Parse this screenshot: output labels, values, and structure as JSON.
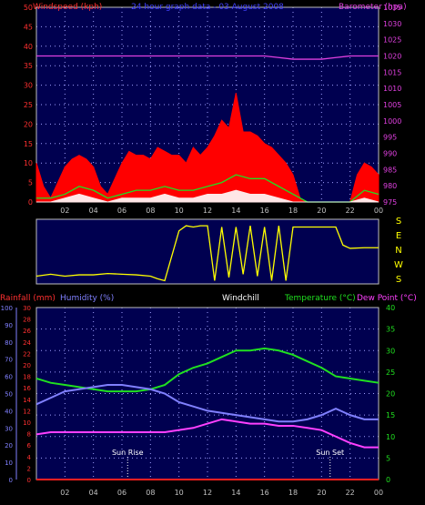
{
  "chart_data": [
    {
      "type": "line",
      "title": "24 hour graph data - 03 August 2008",
      "left_axis_label": "Windspeed (kph)",
      "right_axis_label": "Barometer (hpa)",
      "left_ticks": [
        "0",
        "5",
        "10",
        "15",
        "20",
        "25",
        "30",
        "35",
        "40",
        "45",
        "50"
      ],
      "right_ticks": [
        "975",
        "980",
        "985",
        "990",
        "995",
        "1000",
        "1005",
        "1010",
        "1015",
        "1020",
        "1025",
        "1030",
        "1035"
      ],
      "x_ticks": [
        "02",
        "04",
        "06",
        "08",
        "10",
        "12",
        "14",
        "16",
        "18",
        "20",
        "22",
        "00"
      ],
      "ylim_left": [
        0,
        50
      ],
      "ylim_right": [
        975,
        1035
      ],
      "xlim": [
        0,
        24
      ],
      "grid": true,
      "series": [
        {
          "name": "Barometer",
          "color": "#e040e0",
          "axis": "right",
          "x": [
            0,
            2,
            4,
            6,
            8,
            10,
            12,
            14,
            15,
            16,
            17,
            18,
            19,
            20,
            21,
            22,
            23,
            24
          ],
          "y": [
            1020,
            1020,
            1020,
            1020,
            1020,
            1020,
            1020,
            1020,
            1020,
            1020,
            1019.5,
            1019,
            1019,
            1019,
            1019.5,
            1020,
            1020,
            1020
          ]
        },
        {
          "name": "Gust",
          "color": "#ff0000",
          "axis": "left",
          "x": [
            0,
            0.5,
            1,
            1.5,
            2,
            2.5,
            3,
            3.5,
            4,
            4.5,
            5,
            5.5,
            6,
            6.5,
            7,
            7.5,
            8,
            8.5,
            9,
            9.5,
            10,
            10.5,
            11,
            11.5,
            12,
            12.5,
            13,
            13.5,
            14,
            14.5,
            15,
            15.5,
            16,
            16.5,
            17,
            17.5,
            18,
            18.5,
            19,
            20,
            21,
            22,
            22.5,
            23,
            23.5,
            24
          ],
          "y": [
            10,
            4,
            1,
            5,
            9,
            11,
            12,
            11,
            9,
            4,
            2,
            6,
            10,
            13,
            12,
            12,
            11,
            14,
            13,
            12,
            12,
            10,
            14,
            12,
            14,
            17,
            21,
            19,
            28,
            18,
            18,
            17,
            15,
            14,
            12,
            10,
            7,
            1,
            0,
            0,
            0,
            0,
            7,
            10,
            9,
            7
          ]
        },
        {
          "name": "Average",
          "color": "#20e020",
          "axis": "left",
          "x": [
            0,
            1,
            2,
            3,
            4,
            5,
            6,
            7,
            8,
            9,
            10,
            11,
            12,
            13,
            14,
            15,
            16,
            17,
            18,
            19,
            20,
            21,
            22,
            23,
            24
          ],
          "y": [
            1,
            1,
            2,
            4,
            3,
            1,
            2,
            3,
            3,
            4,
            3,
            3,
            4,
            5,
            7,
            6,
            6,
            4,
            2,
            0,
            0,
            0,
            0,
            3,
            2
          ]
        },
        {
          "name": "Calm",
          "color": "#ffffff",
          "axis": "left",
          "x": [
            0,
            1,
            2,
            3,
            4,
            5,
            6,
            7,
            8,
            9,
            10,
            11,
            12,
            13,
            14,
            15,
            16,
            17,
            18,
            19,
            20,
            21,
            22,
            23,
            24
          ],
          "y": [
            0,
            0,
            1,
            2,
            1,
            0,
            1,
            1,
            1,
            2,
            1,
            1,
            2,
            2,
            3,
            2,
            2,
            1,
            0,
            0,
            0,
            0,
            0,
            1,
            0
          ]
        }
      ]
    },
    {
      "type": "line",
      "title": "Wind Direction",
      "right_labels": [
        "S",
        "E",
        "N",
        "W",
        "S"
      ],
      "x_ticks": [
        "02",
        "04",
        "06",
        "08",
        "10",
        "12",
        "14",
        "16",
        "18",
        "20",
        "22",
        "00"
      ],
      "series": [
        {
          "name": "Direction",
          "color": "#ffff00",
          "x": [
            0,
            1,
            2,
            3,
            4,
            5,
            6,
            7,
            8,
            8.5,
            9,
            10,
            10.5,
            11,
            11.5,
            12,
            12.5,
            13,
            13.5,
            14,
            14.5,
            15,
            15.5,
            16,
            16.5,
            17,
            17.5,
            18,
            18.5,
            19,
            20,
            21,
            21.5,
            22,
            23,
            24
          ],
          "y": [
            0.88,
            0.85,
            0.88,
            0.86,
            0.86,
            0.84,
            0.85,
            0.86,
            0.88,
            0.92,
            0.95,
            0.18,
            0.1,
            0.12,
            0.1,
            0.1,
            0.95,
            0.12,
            0.9,
            0.12,
            0.85,
            0.1,
            0.88,
            0.12,
            0.95,
            0.1,
            0.95,
            0.12,
            0.12,
            0.12,
            0.12,
            0.12,
            0.4,
            0.45,
            0.44,
            0.44
          ]
        }
      ]
    },
    {
      "type": "line",
      "legend": [
        "Rainfall (mm)",
        "Humidity (%)",
        "Windchill",
        "Temperature (°C)",
        "Dew Point (°C)"
      ],
      "left_outer_ticks": [
        "0",
        "10",
        "20",
        "30",
        "40",
        "50",
        "60",
        "70",
        "80",
        "90",
        "100"
      ],
      "left_inner_ticks": [
        "0",
        "2",
        "4",
        "6",
        "8",
        "10",
        "12",
        "14",
        "16",
        "18",
        "20",
        "22",
        "24",
        "26",
        "28",
        "30"
      ],
      "right_ticks": [
        "0",
        "5",
        "10",
        "15",
        "20",
        "25",
        "30",
        "35",
        "40"
      ],
      "x_ticks": [
        "02",
        "04",
        "06",
        "08",
        "10",
        "12",
        "14",
        "16",
        "18",
        "20",
        "22",
        "00"
      ],
      "annotations": [
        {
          "text": "Sun Rise",
          "x": 6.4
        },
        {
          "text": "Sun Set",
          "x": 20.6
        }
      ],
      "ylim_temp": [
        0,
        40
      ],
      "grid": true,
      "series": [
        {
          "name": "Temperature",
          "color": "#20e020",
          "axis": "temp",
          "x": [
            0,
            1,
            2,
            3,
            4,
            5,
            6,
            7,
            8,
            9,
            10,
            11,
            12,
            13,
            14,
            15,
            16,
            17,
            18,
            19,
            20,
            21,
            22,
            23,
            24
          ],
          "y": [
            23.5,
            22.5,
            22,
            21.5,
            21,
            20.5,
            20.5,
            20.5,
            21,
            22,
            24.5,
            26,
            27,
            28.5,
            30,
            30,
            30.5,
            30,
            29,
            27.5,
            26,
            24,
            23.5,
            23,
            22.5
          ]
        },
        {
          "name": "Humidity",
          "color": "#8080ff",
          "axis": "temp",
          "x": [
            0,
            1,
            2,
            3,
            4,
            5,
            6,
            7,
            8,
            9,
            10,
            11,
            12,
            13,
            14,
            15,
            16,
            17,
            18,
            19,
            20,
            21,
            22,
            23,
            24
          ],
          "y": [
            17.5,
            19,
            20.5,
            21,
            21.5,
            22,
            22,
            21.5,
            21,
            20,
            18,
            17,
            16,
            15.5,
            15,
            14.5,
            14,
            13.5,
            13.5,
            14,
            15,
            16.5,
            15,
            14,
            14
          ]
        },
        {
          "name": "Dew Point",
          "color": "#ff40ff",
          "axis": "temp",
          "x": [
            0,
            1,
            2,
            3,
            4,
            5,
            6,
            7,
            8,
            9,
            10,
            11,
            12,
            13,
            14,
            15,
            16,
            17,
            18,
            19,
            20,
            21,
            22,
            23,
            24
          ],
          "y": [
            10.5,
            11,
            11,
            11,
            11,
            11,
            11,
            11,
            11,
            11,
            11.5,
            12,
            13,
            14,
            13.5,
            13,
            13,
            12.5,
            12.5,
            12,
            11.5,
            10,
            8.5,
            7.5,
            7.5
          ]
        },
        {
          "name": "Rainfall",
          "color": "#ff2020",
          "axis": "temp",
          "x": [
            0,
            24
          ],
          "y": [
            0,
            0
          ]
        }
      ]
    }
  ]
}
